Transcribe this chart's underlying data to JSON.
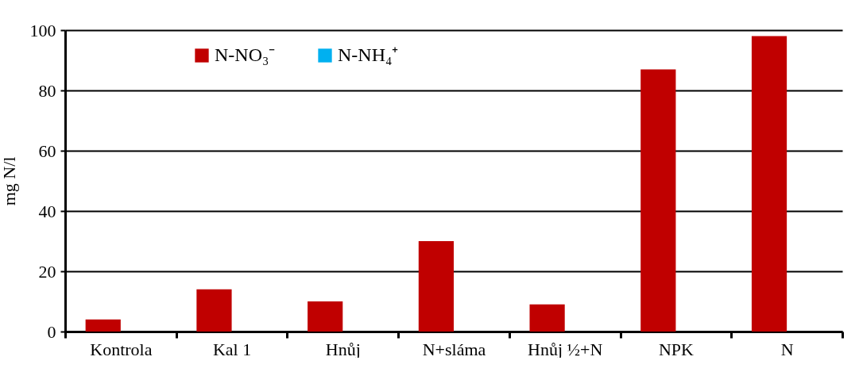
{
  "chart_data": {
    "type": "bar",
    "ylabel": "mg N/l",
    "categories": [
      "Kontrola",
      "Kal 1",
      "Hnůj",
      "N+sláma",
      "Hnůj ½+N",
      "NPK",
      "N"
    ],
    "series": [
      {
        "name": "N-NO₃⁻",
        "color": "#c00000",
        "values": [
          4,
          14,
          10,
          30,
          9,
          87,
          98
        ]
      },
      {
        "name": "N-NH₄⁺",
        "color": "#00b0f0",
        "values": [
          0,
          0,
          0,
          0,
          0,
          0,
          0
        ]
      }
    ],
    "ylim": [
      0,
      100
    ],
    "yticks": [
      0,
      20,
      40,
      60,
      80,
      100
    ],
    "grid": "y",
    "legend": "top"
  }
}
